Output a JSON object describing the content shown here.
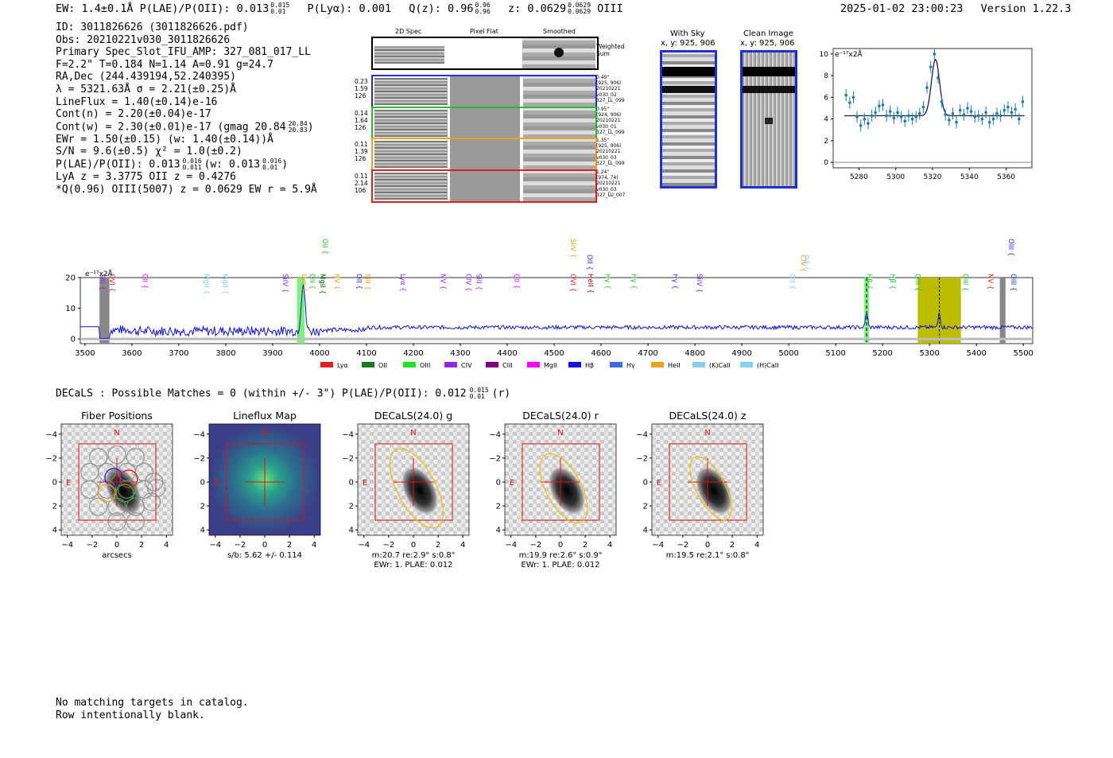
{
  "header": {
    "left": "EW: 1.4±0.1Å  P(LAE)/P(OII): 0.013",
    "left_sup": "0.015",
    "left_sub": "0.01",
    "plya": "P(Lyα): 0.001",
    "qz": "Q(z): 0.96",
    "qz_sup": "0.96",
    "qz_sub": "0.96",
    "z": "z: 0.0629",
    "z_sup": "0.0629",
    "z_sub": "0.0629",
    "z_line": "OIII",
    "timestamp": "2025-01-02 23:00:23",
    "version": "Version 1.22.3"
  },
  "info": {
    "id": "ID: 3011826626 (3011826626.pdf)",
    "obs": "Obs: 20210221v030_3011826626",
    "primary": "Primary Spec_Slot_IFU_AMP: 327_081_017_LL",
    "params": "F=2.2\"  T=0.184  N=1.14  A=0.91  g=24.7",
    "radec": "RA,Dec (244.439194,52.240395)",
    "lambda": "λ = 5321.63Å  σ = 2.21(±0.25)Å",
    "lineflux": "LineFlux = 1.40(±0.14)e-16",
    "contn": "Cont(n) = 2.20(±0.04)e-17",
    "contw": "Cont(w) = 2.30(±0.01)e-17 (gmag 20.84",
    "contw_sup": "20.84",
    "contw_sub": "20.83",
    "ewr": "EWr = 1.50(±0.15) (w: 1.40(±0.14))Å",
    "sn": "S/N = 9.6(±0.5)  χ² = 1.0(±0.2)",
    "plae": "P(LAE)/P(OII): 0.013",
    "plae_sup1": "0.016",
    "plae_sub1": "0.011",
    "plae_mid": "(w: 0.013",
    "plae_sup2": "0.016",
    "plae_sub2": "0.01",
    "lya": "LyA z = 3.3775  OII z = 0.4276",
    "q": "*Q(0.96) OIII(5007) z = 0.0629  EW r = 5.9Å"
  },
  "cutouts": {
    "col_2d": "2D Spec",
    "col_flat": "Pixel Flat",
    "col_smooth": "Smoothed",
    "weighted": "Weighted Sum",
    "rows": [
      {
        "left": [
          "0.23",
          "1.59",
          "126"
        ],
        "right": [
          "0.49\"",
          "(925, 906)",
          "20210221",
          "v030_02",
          "327_LL_099"
        ],
        "color": "#1f2fd0"
      },
      {
        "left": [
          "0.14",
          "1.64",
          "126"
        ],
        "right": [
          "0.95\"",
          "(924, 906)",
          "20210221",
          "v030_01",
          "327_LL_099"
        ],
        "color": "#22c02a"
      },
      {
        "left": [
          "0.11",
          "1.39",
          "126"
        ],
        "right": [
          "1.35\"",
          "(925, 906)",
          "20210221",
          "v030_03",
          "327_LL_099"
        ],
        "color": "#f0a020"
      },
      {
        "left": [
          "0.11",
          "2.14",
          "106"
        ],
        "right": [
          "1.24\"",
          "(974, 74)",
          "20210221",
          "v030_03",
          "327_LU_007"
        ],
        "color": "#e02020"
      }
    ]
  },
  "sky": {
    "with_sky_title": "With Sky",
    "with_sky_xy": "x, y: 925, 906",
    "clean_title": "Clean Image",
    "clean_xy": "x, y: 925, 906"
  },
  "fit": {
    "units": "e⁻¹⁷x2Å",
    "x": [
      5273,
      5275,
      5277,
      5279,
      5281,
      5283,
      5285,
      5287,
      5289,
      5291,
      5293,
      5295,
      5297,
      5299,
      5301,
      5303,
      5305,
      5307,
      5309,
      5311,
      5313,
      5315,
      5317,
      5319,
      5321,
      5323,
      5325,
      5327,
      5329,
      5331,
      5333,
      5335,
      5337,
      5339,
      5341,
      5343,
      5345,
      5347,
      5349,
      5351,
      5353,
      5355,
      5357,
      5359,
      5361,
      5363,
      5365,
      5367,
      5369
    ],
    "y": [
      6.2,
      5.5,
      6.0,
      4.2,
      3.4,
      4.0,
      3.6,
      4.3,
      4.6,
      5.2,
      5.3,
      4.3,
      4.7,
      4.1,
      4.6,
      4.2,
      3.8,
      4.3,
      4.0,
      4.2,
      4.5,
      5.1,
      6.9,
      8.8,
      10.0,
      7.8,
      5.6,
      4.4,
      3.9,
      4.5,
      3.7,
      4.8,
      4.4,
      5.0,
      4.7,
      4.2,
      4.3,
      4.0,
      4.6,
      3.7,
      4.0,
      4.5,
      4.3,
      4.8,
      5.1,
      4.6,
      4.9,
      4.0,
      5.6
    ],
    "xlim": [
      5266,
      5374
    ],
    "ylim": [
      -0.5,
      10.5
    ],
    "xticks": [
      "5280",
      "5300",
      "5320",
      "5340",
      "5360"
    ],
    "yticks": [
      "0",
      "2",
      "4",
      "6",
      "8",
      "10"
    ]
  },
  "spectrum": {
    "units": "e⁻¹⁷x2Å",
    "xticks": [
      "3500",
      "3600",
      "3700",
      "3800",
      "3900",
      "4000",
      "4100",
      "4200",
      "4300",
      "4400",
      "4500",
      "4600",
      "4700",
      "4800",
      "4900",
      "5000",
      "5100",
      "5200",
      "5300",
      "5400",
      "5500"
    ],
    "yticks": [
      "0",
      "10",
      "20"
    ],
    "xlim": [
      3490,
      5520
    ],
    "ylim": [
      -1.5,
      20
    ],
    "line_labels": [
      {
        "t": "SiII",
        "w": 3527,
        "c": "#8a2be2",
        "r": 2
      },
      {
        "t": "OVI",
        "w": 3548,
        "c": "#e02020",
        "r": 2
      },
      {
        "t": "CII",
        "w": 3618,
        "c": "#ff00ff",
        "r": 2
      },
      {
        "t": "MgII",
        "w": 3749,
        "c": "#87ceeb",
        "r": 2
      },
      {
        "t": "MgII",
        "w": 3789,
        "c": "#87ceeb",
        "r": 2
      },
      {
        "t": "SiIV",
        "w": 3917,
        "c": "#8a2be2",
        "r": 2
      },
      {
        "t": "Lyα",
        "w": 3958,
        "c": "#f0a020",
        "r": 2
      },
      {
        "t": "OII",
        "w": 3975,
        "c": "#22c02a",
        "r": 2
      },
      {
        "t": "OII",
        "w": 4002,
        "c": "#22c02a",
        "r": 0
      },
      {
        "t": "MgII",
        "w": 3997,
        "c": "#006400",
        "r": 2
      },
      {
        "t": "NV",
        "w": 4027,
        "c": "#f0a020",
        "r": 2
      },
      {
        "t": "OII",
        "w": 4075,
        "c": "#1f2fd0",
        "r": 2
      },
      {
        "t": "SiII",
        "w": 4092,
        "c": "#f0a020",
        "r": 2
      },
      {
        "t": "Lyα",
        "w": 4168,
        "c": "#8a2be2",
        "r": 2
      },
      {
        "t": "NV",
        "w": 4253,
        "c": "#8a2be2",
        "r": 2
      },
      {
        "t": "CIV",
        "w": 4308,
        "c": "#8a2be2",
        "r": 2
      },
      {
        "t": "SiII",
        "w": 4330,
        "c": "#8a2be2",
        "r": 2
      },
      {
        "t": "CII",
        "w": 4410,
        "c": "#ff00ff",
        "r": 2
      },
      {
        "t": "OVI",
        "w": 4530,
        "c": "#e02020",
        "r": 2
      },
      {
        "t": "SiIV",
        "w": 4530,
        "c": "#f0a020",
        "r": 0
      },
      {
        "t": "OII",
        "w": 4566,
        "c": "#1f2fd0",
        "r": 1
      },
      {
        "t": "HeII",
        "w": 4568,
        "c": "#8b0000",
        "r": 2
      },
      {
        "t": "Hγ",
        "w": 4604,
        "c": "#22c02a",
        "r": 2
      },
      {
        "t": "Hγ",
        "w": 4660,
        "c": "#22c02a",
        "r": 2
      },
      {
        "t": "Hγ",
        "w": 4748,
        "c": "#1f2fd0",
        "r": 2
      },
      {
        "t": "SiIV",
        "w": 4800,
        "c": "#8a2be2",
        "r": 2
      },
      {
        "t": "OII",
        "w": 4998,
        "c": "#87ceeb",
        "r": 2
      },
      {
        "t": "CIV",
        "w": 5021,
        "c": "#f0a020",
        "r": 1
      },
      {
        "t": "OII",
        "w": 5028,
        "c": "#87ceeb",
        "r": 1
      },
      {
        "t": "Hβ",
        "w": 5162,
        "c": "#22c02a",
        "r": 2
      },
      {
        "t": "Hβ",
        "w": 5212,
        "c": "#22c02a",
        "r": 2
      },
      {
        "t": "OIII",
        "w": 5265,
        "c": "#22c02a",
        "r": 2
      },
      {
        "t": "OIII",
        "w": 5367,
        "c": "#22c02a",
        "r": 2
      },
      {
        "t": "NV",
        "w": 5420,
        "c": "#e02020",
        "r": 2
      },
      {
        "t": "OIII",
        "w": 5464,
        "c": "#1f2fd0",
        "r": 0
      },
      {
        "t": "OIII",
        "w": 5469,
        "c": "#1f2fd0",
        "r": 2
      }
    ],
    "legend": [
      {
        "t": "Lyα",
        "c": "#e02020"
      },
      {
        "t": "OII",
        "c": "#1a7a1a"
      },
      {
        "t": "OIII",
        "c": "#22e022"
      },
      {
        "t": "CIV",
        "c": "#8a2be2"
      },
      {
        "t": "CIII",
        "c": "#800080"
      },
      {
        "t": "MgII",
        "c": "#ff00ff"
      },
      {
        "t": "Hβ",
        "c": "#1010e0"
      },
      {
        "t": "Hγ",
        "c": "#4169e1"
      },
      {
        "t": "HeII",
        "c": "#f0a020"
      },
      {
        "t": "(K)CaII",
        "c": "#87ceeb"
      },
      {
        "t": "(H)CaII",
        "c": "#87ceeb"
      }
    ]
  },
  "decals": {
    "summary": "DECaLS : Possible Matches = 0 (within +/- 3\")  P(LAE)/P(OII): 0.012",
    "summary_sup": "0.015",
    "summary_sub": "0.01",
    "summary_band": "(r)",
    "panels": [
      {
        "title": "Fiber Positions",
        "cap1": "arcsecs",
        "cap2": ""
      },
      {
        "title": "Lineflux Map",
        "cap1": "s/b: 5.62 +/- 0.114",
        "cap2": ""
      },
      {
        "title": "DECaLS(24.0) g",
        "cap1": "m:20.7  re:2.9\"  s:0.8\"",
        "cap2": "EWr: 1. PLAE: 0.012"
      },
      {
        "title": "DECaLS(24.0) r",
        "cap1": "m:19.9  re:2.6\"  s:0.9\"",
        "cap2": "EWr: 1. PLAE: 0.012"
      },
      {
        "title": "DECaLS(24.0) z",
        "cap1": "m:19.5  re:2.1\"  s:0.8\"",
        "cap2": ""
      }
    ],
    "ticks": [
      "−4",
      "−2",
      "0",
      "2",
      "4"
    ],
    "n_label": "N",
    "e_label": "E"
  },
  "bottom": {
    "line1": "No matching targets in catalog.",
    "line2": "Row intentionally blank."
  }
}
